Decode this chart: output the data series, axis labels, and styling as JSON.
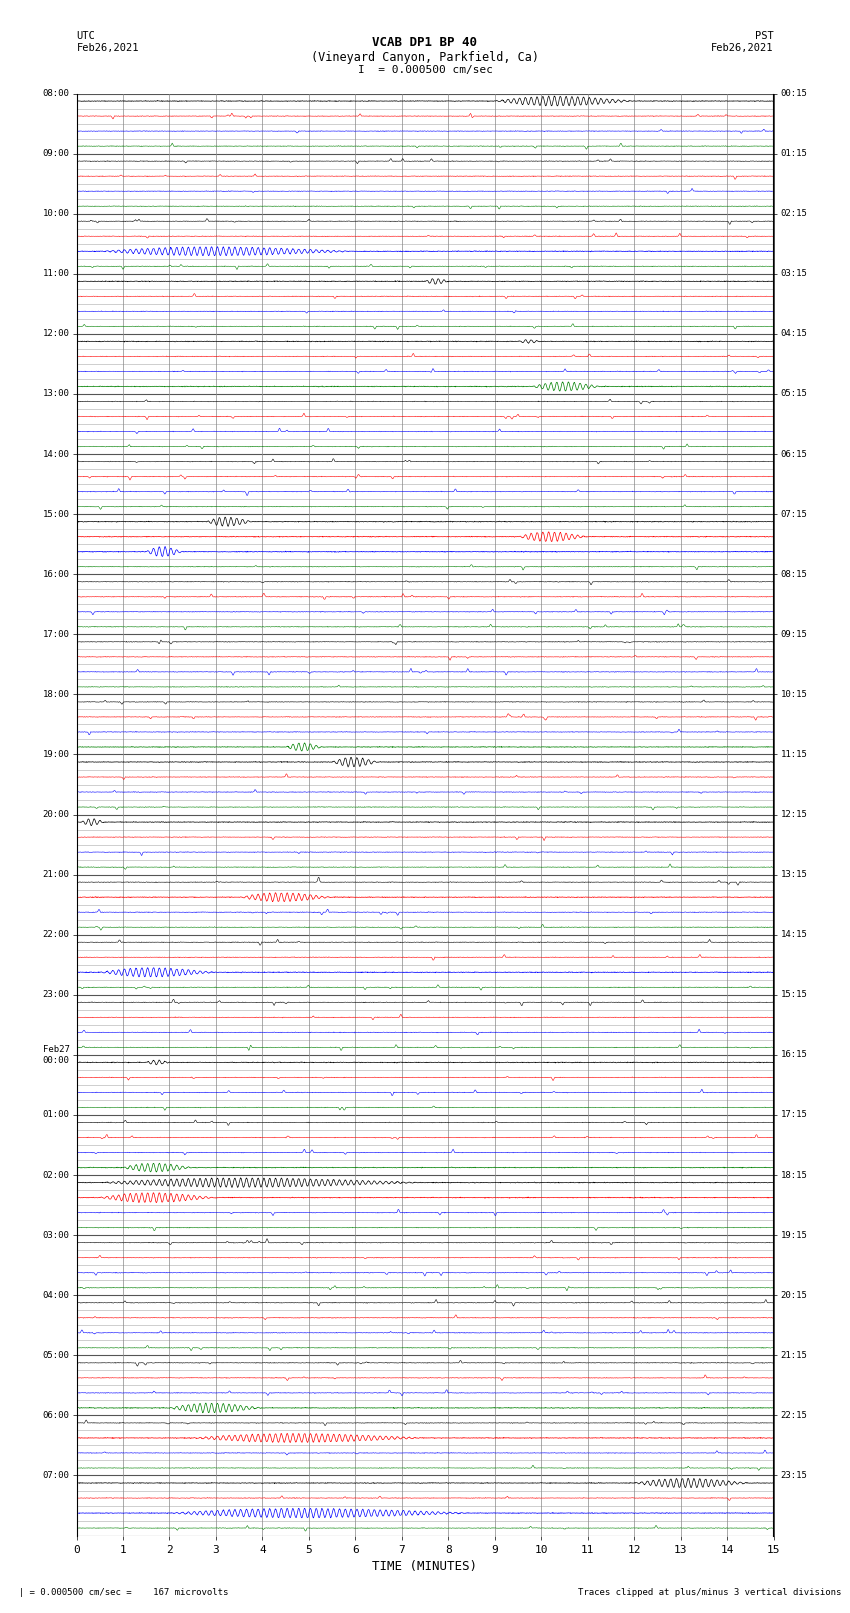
{
  "title_line1": "VCAB DP1 BP 40",
  "title_line2": "(Vineyard Canyon, Parkfield, Ca)",
  "scale_label": "I  = 0.000500 cm/sec",
  "utc_label": "UTC",
  "utc_date": "Feb26,2021",
  "pst_label": "PST",
  "pst_date": "Feb26,2021",
  "xlabel": "TIME (MINUTES)",
  "footer_left": "  | = 0.000500 cm/sec =    167 microvolts",
  "footer_right": "Traces clipped at plus/minus 3 vertical divisions",
  "bgcolor": "#ffffff",
  "grid_color": "#888888",
  "sub_colors": [
    "#000000",
    "#ff0000",
    "#0000ff",
    "#008000"
  ],
  "num_hour_rows": 24,
  "num_sub_rows": 4,
  "left_times": [
    "08:00",
    "09:00",
    "10:00",
    "11:00",
    "12:00",
    "13:00",
    "14:00",
    "15:00",
    "16:00",
    "17:00",
    "18:00",
    "19:00",
    "20:00",
    "21:00",
    "22:00",
    "23:00",
    "Feb27\n00:00",
    "01:00",
    "02:00",
    "03:00",
    "04:00",
    "05:00",
    "06:00",
    "07:00"
  ],
  "right_times": [
    "00:15",
    "01:15",
    "02:15",
    "03:15",
    "04:15",
    "05:15",
    "06:15",
    "07:15",
    "08:15",
    "09:15",
    "10:15",
    "11:15",
    "12:15",
    "13:15",
    "14:15",
    "15:15",
    "16:15",
    "17:15",
    "18:15",
    "19:15",
    "20:15",
    "21:15",
    "22:15",
    "23:15"
  ],
  "x_ticks": [
    0,
    1,
    2,
    3,
    4,
    5,
    6,
    7,
    8,
    9,
    10,
    11,
    12,
    13,
    14,
    15
  ]
}
